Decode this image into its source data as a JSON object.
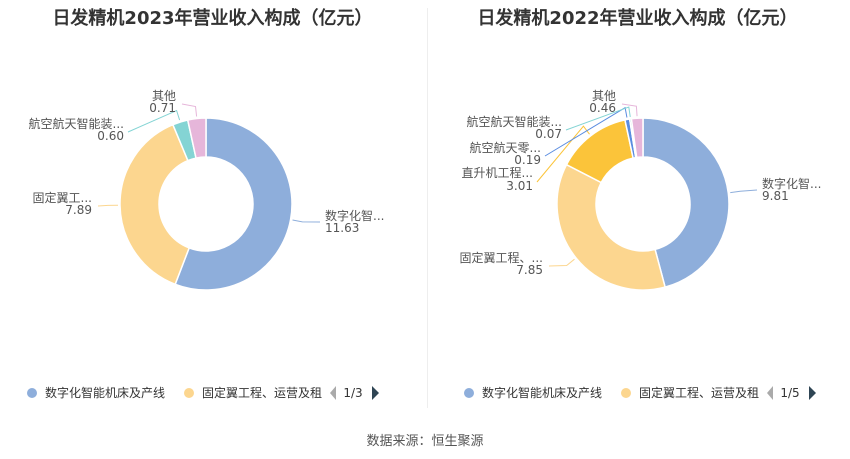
{
  "source": "数据来源：恒生聚源",
  "chart_data": [
    {
      "type": "pie",
      "title": "日发精机2023年营业收入构成（亿元）",
      "categories": [
        "数字化智能机床及产线",
        "固定翼工程、运营及租赁",
        "航空航天智能装备",
        "其他"
      ],
      "values": [
        11.63,
        7.89,
        0.6,
        0.71
      ],
      "slice_labels": [
        "数字化智...",
        "固定翼工...",
        "航空航天智能装...",
        "其他"
      ],
      "value_labels": [
        "11.63",
        "7.89",
        "0.60",
        "0.71"
      ],
      "colors": [
        "#8eaedb",
        "#fcd68f",
        "#84d4d4",
        "#e6b6da"
      ],
      "legend": {
        "items": [
          "数字化智能机床及产线",
          "固定翼工程、运营及租"
        ],
        "page": "1/3"
      }
    },
    {
      "type": "pie",
      "title": "日发精机2022年营业收入构成（亿元）",
      "categories": [
        "数字化智能机床及产线",
        "固定翼工程、运营及租赁",
        "直升机工程",
        "航空航天零部件",
        "航空航天智能装备",
        "其他"
      ],
      "values": [
        9.81,
        7.85,
        3.01,
        0.19,
        0.07,
        0.46
      ],
      "slice_labels": [
        "数字化智...",
        "固定翼工程、...",
        "直升机工程...",
        "航空航天零...",
        "航空航天智能装...",
        "其他"
      ],
      "value_labels": [
        "9.81",
        "7.85",
        "3.01",
        "0.19",
        "0.07",
        "0.46"
      ],
      "colors": [
        "#8eaedb",
        "#fcd68f",
        "#fbc43a",
        "#5a8ce0",
        "#84d4d4",
        "#e6b6da"
      ],
      "legend": {
        "items": [
          "数字化智能机床及产线",
          "固定翼工程、运营及租"
        ],
        "page": "1/5"
      }
    }
  ]
}
